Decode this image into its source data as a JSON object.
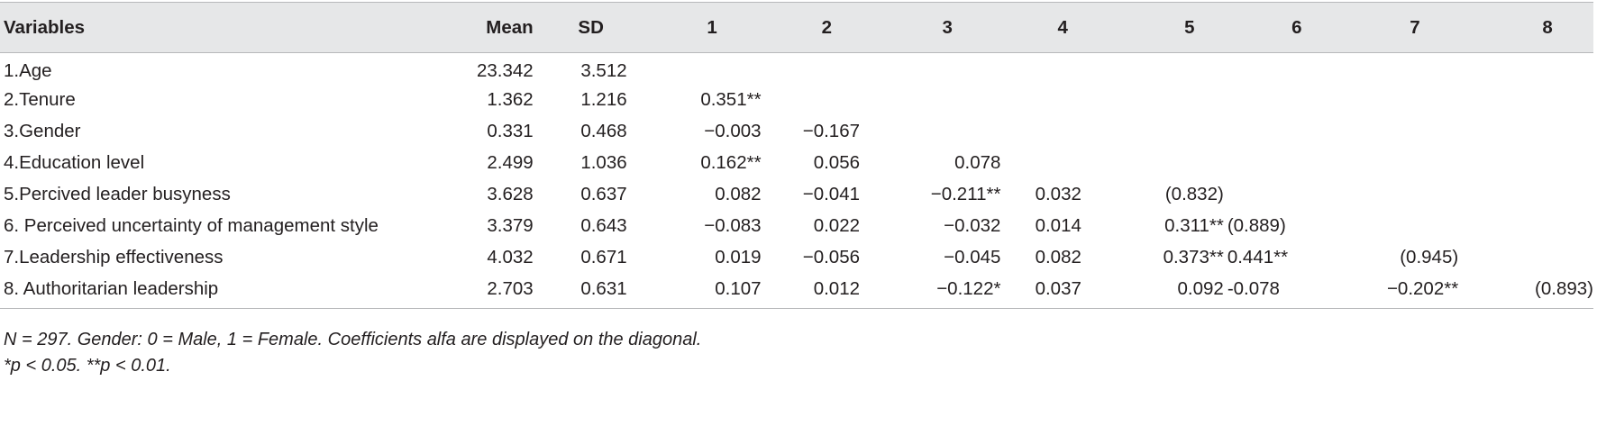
{
  "table": {
    "headers": [
      "Variables",
      "Mean",
      "SD",
      "1",
      "2",
      "3",
      "4",
      "5",
      "6",
      "7",
      "8"
    ],
    "rows": [
      {
        "variable": "1.Age",
        "mean": "23.342",
        "sd": "3.512",
        "c1": "",
        "c2": "",
        "c3": "",
        "c4": "",
        "c5": "",
        "c6": "",
        "c7": "",
        "c8": ""
      },
      {
        "variable": "2.Tenure",
        "mean": "1.362",
        "sd": "1.216",
        "c1": "0.351**",
        "c2": "",
        "c3": "",
        "c4": "",
        "c5": "",
        "c6": "",
        "c7": "",
        "c8": ""
      },
      {
        "variable": "3.Gender",
        "mean": "0.331",
        "sd": "0.468",
        "c1": "−0.003",
        "c2": "−0.167",
        "c3": "",
        "c4": "",
        "c5": "",
        "c6": "",
        "c7": "",
        "c8": ""
      },
      {
        "variable": "4.Education level",
        "mean": "2.499",
        "sd": "1.036",
        "c1": "0.162**",
        "c2": "0.056",
        "c3": "0.078",
        "c4": "",
        "c5": "",
        "c6": "",
        "c7": "",
        "c8": ""
      },
      {
        "variable": "5.Percived leader busyness",
        "mean": "3.628",
        "sd": "0.637",
        "c1": "0.082",
        "c2": "−0.041",
        "c3": "−0.211**",
        "c4": "0.032",
        "c5": "(0.832)",
        "c6": "",
        "c7": "",
        "c8": ""
      },
      {
        "variable": "6. Perceived uncertainty of management style",
        "mean": "3.379",
        "sd": "0.643",
        "c1": "−0.083",
        "c2": "0.022",
        "c3": "−0.032",
        "c4": "0.014",
        "c5": "0.311**",
        "c6": "(0.889)",
        "c7": "",
        "c8": ""
      },
      {
        "variable": "7.Leadership effectiveness",
        "mean": "4.032",
        "sd": "0.671",
        "c1": "0.019",
        "c2": "−0.056",
        "c3": "−0.045",
        "c4": "0.082",
        "c5": "0.373**",
        "c6": "0.441**",
        "c7": "(0.945)",
        "c8": ""
      },
      {
        "variable": "8. Authoritarian leadership",
        "mean": "2.703",
        "sd": "0.631",
        "c1": "0.107",
        "c2": "0.012",
        "c3": "−0.122*",
        "c4": "0.037",
        "c5": "0.092",
        "c6": "-0.078",
        "c7": "−0.202**",
        "c8": "(0.893)"
      }
    ]
  },
  "notes": {
    "line1": "N = 297. Gender: 0 = Male, 1 = Female. Coefficients alfa are displayed on the diagonal.",
    "line2": "*p < 0.05. **p < 0.01."
  },
  "colors": {
    "header_bg": "#e6e7e8",
    "rule": "#b7b8ba",
    "text": "#231f20"
  }
}
